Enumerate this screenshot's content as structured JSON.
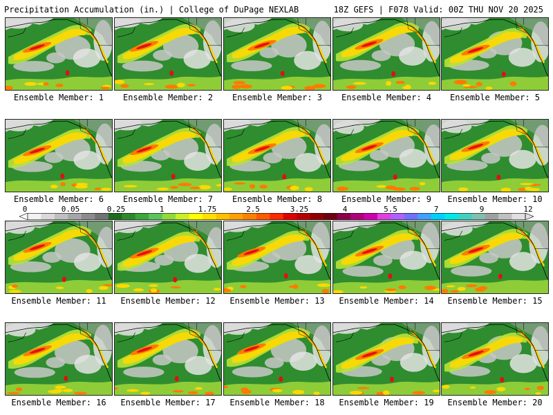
{
  "header": {
    "title": "Precipitation Accumulation (in.) | College of DuPage NEXLAB",
    "valid": "18Z GEFS | F078 Valid: 00Z THU NOV 20 2025"
  },
  "members": [
    "Ensemble Member: 1",
    "Ensemble Member: 2",
    "Ensemble Member: 3",
    "Ensemble Member: 4",
    "Ensemble Member: 5",
    "Ensemble Member: 6",
    "Ensemble Member: 7",
    "Ensemble Member: 8",
    "Ensemble Member: 9",
    "Ensemble Member: 10",
    "Ensemble Member: 11",
    "Ensemble Member: 12",
    "Ensemble Member: 13",
    "Ensemble Member: 14",
    "Ensemble Member: 15",
    "Ensemble Member: 16",
    "Ensemble Member: 17",
    "Ensemble Member: 18",
    "Ensemble Member: 19",
    "Ensemble Member: 20"
  ],
  "colorbar": {
    "tick_labels": [
      "0",
      "0.05",
      "0.25",
      "1",
      "1.75",
      "2.5",
      "3.25",
      "4",
      "5.5",
      "7",
      "9",
      "12"
    ],
    "colors": [
      "#f2f2f2",
      "#d9d9d9",
      "#bfbfbf",
      "#a6a6a6",
      "#8c8c8c",
      "#737373",
      "#1e6b1e",
      "#2b8a2b",
      "#3aa83a",
      "#5cc45c",
      "#8edb3a",
      "#c8ef28",
      "#ffff00",
      "#ffe000",
      "#ffc000",
      "#ffa000",
      "#ff8000",
      "#ff5a00",
      "#ff2a00",
      "#e00000",
      "#b80000",
      "#900000",
      "#700010",
      "#8a004a",
      "#b0007a",
      "#d000b0",
      "#e040e0",
      "#b060ff",
      "#7070ff",
      "#40a0ff",
      "#00d0ff",
      "#00e8e8",
      "#40d0c0",
      "#80c0b0",
      "#a0a0a0",
      "#c0c0c0",
      "#e0e0e0"
    ]
  }
}
